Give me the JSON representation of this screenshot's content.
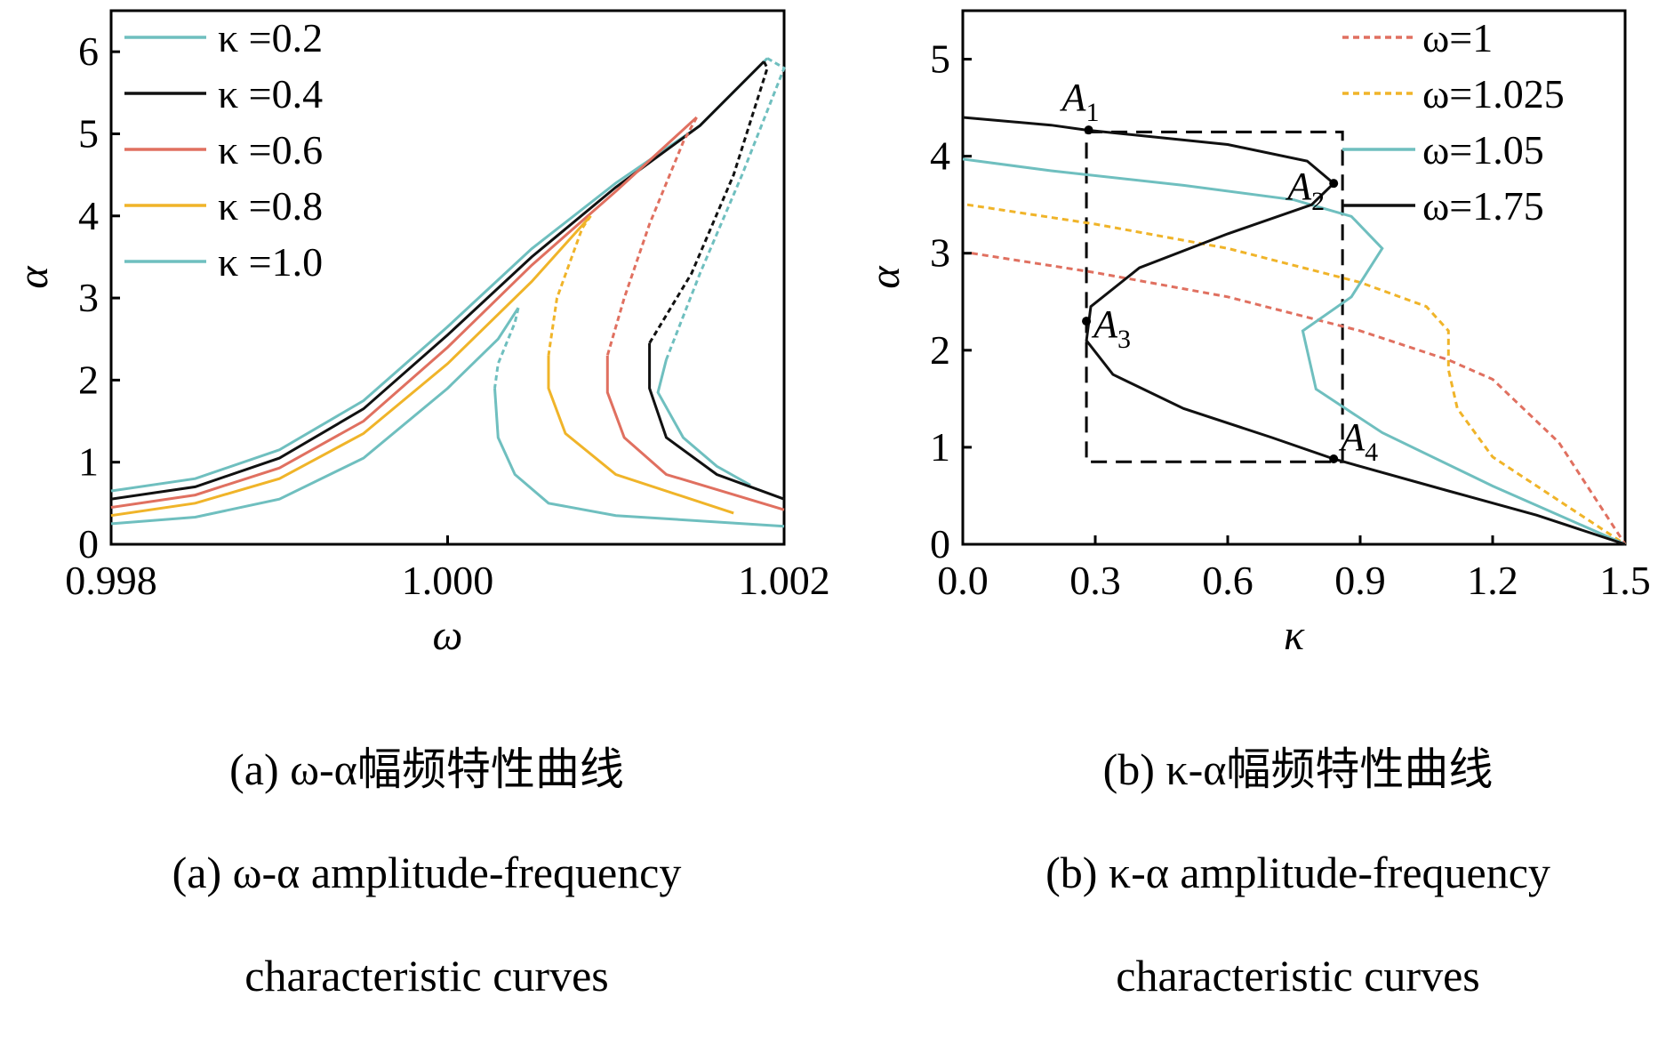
{
  "panels": [
    {
      "id": "a",
      "caption_cn": "(a) ω-α幅频特性曲线",
      "caption_en_1": "(a) ω-α amplitude-frequency",
      "caption_en_2": "characteristic curves"
    },
    {
      "id": "b",
      "caption_cn": "(b) κ-α幅频特性曲线",
      "caption_en_1": "(b) κ-α amplitude-frequency",
      "caption_en_2": "characteristic curves"
    }
  ],
  "chart_data": [
    {
      "type": "line",
      "xlabel": "ω",
      "ylabel": "α",
      "xlim": [
        0.998,
        1.002
      ],
      "ylim": [
        0,
        6.5
      ],
      "xticks": [
        "0.998",
        "1.000",
        "1.002"
      ],
      "xtick_values": [
        0.998,
        1.0,
        1.002
      ],
      "yticks": [
        "0",
        "1",
        "2",
        "3",
        "4",
        "5",
        "6"
      ],
      "ytick_values": [
        0,
        1,
        2,
        3,
        4,
        5,
        6
      ],
      "grid": false,
      "legend_position": "top-left",
      "series": [
        {
          "name": "κ =0.2",
          "color": "#6fbfbf",
          "upper": [
            [
              0.998,
              0.65
            ],
            [
              0.9985,
              0.8
            ],
            [
              0.999,
              1.15
            ],
            [
              0.9995,
              1.75
            ],
            [
              1.0,
              2.65
            ],
            [
              1.0005,
              3.6
            ],
            [
              1.001,
              4.4
            ],
            [
              1.0015,
              5.1
            ],
            [
              1.0019,
              5.92
            ]
          ],
          "unstable": [
            [
              1.0019,
              5.92
            ],
            [
              1.002,
              5.8
            ],
            [
              1.00175,
              4.5
            ],
            [
              1.0015,
              3.3
            ],
            [
              1.0013,
              2.25
            ]
          ],
          "lower": [
            [
              1.0013,
              2.25
            ],
            [
              1.00125,
              1.85
            ],
            [
              1.0014,
              1.3
            ],
            [
              1.0016,
              0.95
            ],
            [
              1.0018,
              0.72
            ]
          ]
        },
        {
          "name": "κ =0.4",
          "color": "#111111",
          "upper": [
            [
              0.998,
              0.55
            ],
            [
              0.9985,
              0.7
            ],
            [
              0.999,
              1.05
            ],
            [
              0.9995,
              1.65
            ],
            [
              1.0,
              2.55
            ],
            [
              1.0005,
              3.5
            ],
            [
              1.001,
              4.35
            ],
            [
              1.0015,
              5.1
            ],
            [
              1.00188,
              5.88
            ]
          ],
          "unstable": [
            [
              1.00188,
              5.88
            ],
            [
              1.0019,
              5.8
            ],
            [
              1.0017,
              4.5
            ],
            [
              1.00145,
              3.3
            ],
            [
              1.0012,
              2.45
            ]
          ],
          "lower": [
            [
              1.0012,
              2.45
            ],
            [
              1.0012,
              1.9
            ],
            [
              1.0013,
              1.3
            ],
            [
              1.0016,
              0.85
            ],
            [
              1.002,
              0.55
            ]
          ]
        },
        {
          "name": "κ =0.6",
          "color": "#e07060",
          "upper": [
            [
              0.998,
              0.45
            ],
            [
              0.9985,
              0.6
            ],
            [
              0.999,
              0.93
            ],
            [
              0.9995,
              1.5
            ],
            [
              1.0,
              2.4
            ],
            [
              1.0005,
              3.4
            ],
            [
              1.001,
              4.3
            ],
            [
              1.00148,
              5.2
            ]
          ],
          "unstable": [
            [
              1.00148,
              5.2
            ],
            [
              1.0014,
              4.9
            ],
            [
              1.0012,
              3.9
            ],
            [
              1.00105,
              3.0
            ],
            [
              1.00095,
              2.3
            ]
          ],
          "lower": [
            [
              1.00095,
              2.3
            ],
            [
              1.00095,
              1.85
            ],
            [
              1.00105,
              1.3
            ],
            [
              1.0013,
              0.85
            ],
            [
              1.002,
              0.42
            ]
          ]
        },
        {
          "name": "κ =0.8",
          "color": "#f0b429",
          "upper": [
            [
              0.998,
              0.35
            ],
            [
              0.9985,
              0.5
            ],
            [
              0.999,
              0.8
            ],
            [
              0.9995,
              1.35
            ],
            [
              1.0,
              2.2
            ],
            [
              1.0005,
              3.2
            ],
            [
              1.00085,
              4.0
            ]
          ],
          "unstable": [
            [
              1.00085,
              4.0
            ],
            [
              1.0008,
              3.85
            ],
            [
              1.00065,
              3.0
            ],
            [
              1.0006,
              2.3
            ]
          ],
          "lower": [
            [
              1.0006,
              2.3
            ],
            [
              1.0006,
              1.9
            ],
            [
              1.0007,
              1.35
            ],
            [
              1.001,
              0.85
            ],
            [
              1.0017,
              0.38
            ]
          ]
        },
        {
          "name": "κ =1.0",
          "color": "#6fbfbf",
          "upper": [
            [
              0.998,
              0.25
            ],
            [
              0.9985,
              0.33
            ],
            [
              0.999,
              0.55
            ],
            [
              0.9995,
              1.05
            ],
            [
              1.0,
              1.9
            ],
            [
              1.0003,
              2.5
            ],
            [
              1.00042,
              2.88
            ]
          ],
          "unstable": [
            [
              1.00042,
              2.88
            ],
            [
              1.0004,
              2.7
            ],
            [
              1.0003,
              2.2
            ],
            [
              1.00028,
              1.9
            ]
          ],
          "lower": [
            [
              1.00028,
              1.9
            ],
            [
              1.0003,
              1.3
            ],
            [
              1.0004,
              0.85
            ],
            [
              1.0006,
              0.5
            ],
            [
              1.001,
              0.35
            ],
            [
              1.002,
              0.22
            ]
          ]
        }
      ]
    },
    {
      "type": "line",
      "xlabel": "κ",
      "ylabel": "α",
      "xlim": [
        0,
        1.5
      ],
      "ylim": [
        0,
        5.5
      ],
      "xticks": [
        "0.0",
        "0.3",
        "0.6",
        "0.9",
        "1.2",
        "1.5"
      ],
      "xtick_values": [
        0,
        0.3,
        0.6,
        0.9,
        1.2,
        1.5
      ],
      "yticks": [
        "0",
        "1",
        "2",
        "3",
        "4",
        "5"
      ],
      "ytick_values": [
        0,
        1,
        2,
        3,
        4,
        5
      ],
      "grid": false,
      "legend_position": "top-right",
      "series": [
        {
          "name": "ω=1",
          "color": "#e07060",
          "dash": true,
          "points": [
            [
              0.02,
              3.0
            ],
            [
              0.3,
              2.8
            ],
            [
              0.6,
              2.55
            ],
            [
              0.9,
              2.2
            ],
            [
              1.1,
              1.9
            ],
            [
              1.2,
              1.7
            ],
            [
              1.35,
              1.05
            ],
            [
              1.5,
              0.0
            ]
          ]
        },
        {
          "name": "ω=1.025",
          "color": "#f0b429",
          "dash": true,
          "points": [
            [
              0.01,
              3.5
            ],
            [
              0.3,
              3.3
            ],
            [
              0.6,
              3.05
            ],
            [
              0.9,
              2.7
            ],
            [
              1.05,
              2.45
            ],
            [
              1.1,
              2.2
            ],
            [
              1.1,
              1.8
            ],
            [
              1.12,
              1.4
            ],
            [
              1.2,
              0.9
            ],
            [
              1.35,
              0.45
            ],
            [
              1.5,
              0.0
            ]
          ]
        },
        {
          "name": "ω=1.05",
          "color": "#6fbfbf",
          "dash": false,
          "points": [
            [
              0.0,
              3.97
            ],
            [
              0.2,
              3.85
            ],
            [
              0.5,
              3.7
            ],
            [
              0.75,
              3.55
            ],
            [
              0.88,
              3.38
            ],
            [
              0.95,
              3.05
            ],
            [
              0.88,
              2.55
            ],
            [
              0.77,
              2.2
            ],
            [
              0.8,
              1.6
            ],
            [
              0.95,
              1.15
            ],
            [
              1.2,
              0.6
            ],
            [
              1.5,
              0.0
            ]
          ]
        },
        {
          "name": "ω=1.75",
          "color": "#111111",
          "dash": false,
          "points": [
            [
              0.0,
              4.4
            ],
            [
              0.2,
              4.32
            ],
            [
              0.28,
              4.27
            ],
            [
              0.6,
              4.12
            ],
            [
              0.78,
              3.95
            ],
            [
              0.84,
              3.72
            ],
            [
              0.79,
              3.5
            ],
            [
              0.6,
              3.2
            ],
            [
              0.4,
              2.85
            ],
            [
              0.29,
              2.45
            ],
            [
              0.28,
              2.1
            ],
            [
              0.34,
              1.75
            ],
            [
              0.5,
              1.4
            ],
            [
              0.7,
              1.1
            ],
            [
              0.84,
              0.88
            ],
            [
              1.1,
              0.55
            ],
            [
              1.3,
              0.3
            ],
            [
              1.5,
              0.0
            ]
          ]
        }
      ],
      "annotations": [
        {
          "label": "A",
          "sub": "1",
          "x": 0.285,
          "y": 4.27
        },
        {
          "label": "A",
          "sub": "2",
          "x": 0.84,
          "y": 3.72
        },
        {
          "label": "A",
          "sub": "3",
          "x": 0.28,
          "y": 2.3
        },
        {
          "label": "A",
          "sub": "4",
          "x": 0.84,
          "y": 0.88
        }
      ],
      "rectangle": {
        "x0": 0.28,
        "x1": 0.86,
        "y0": 0.85,
        "y1": 4.25
      }
    }
  ]
}
